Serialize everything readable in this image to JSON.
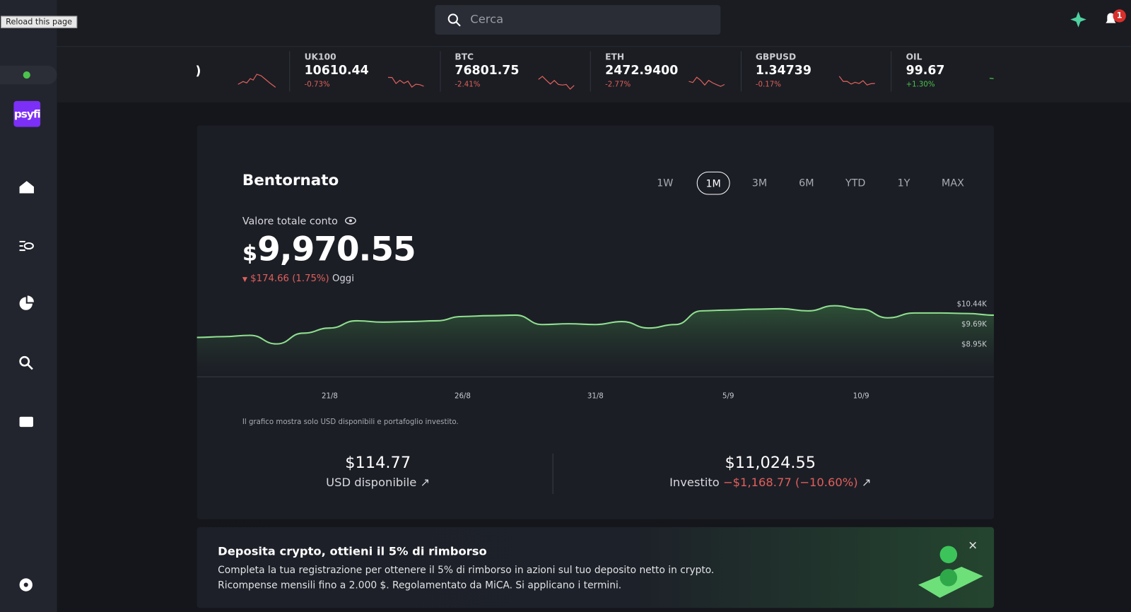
{
  "browser_tooltip": "Reload this page",
  "search": {
    "placeholder": "Cerca"
  },
  "notifications": {
    "badge": "1"
  },
  "sidebar": {
    "logo": "psyfi"
  },
  "ticker": [
    {
      "symbol": "UK100",
      "price": "10610.44",
      "change": "-0.73%",
      "color": "#e0605a"
    },
    {
      "symbol": "BTC",
      "price": "76801.75",
      "change": "-2.41%",
      "color": "#e0605a"
    },
    {
      "symbol": "ETH",
      "price": "2472.9400",
      "change": "-2.77%",
      "color": "#e0605a"
    },
    {
      "symbol": "GBPUSD",
      "price": "1.34739",
      "change": "-0.17%",
      "color": "#e0605a"
    },
    {
      "symbol": "OIL",
      "price": "99.67",
      "change": "+1.30%",
      "color": "#4cc34c"
    }
  ],
  "dashboard": {
    "title": "Bentornato",
    "ranges": [
      "1W",
      "1M",
      "3M",
      "6M",
      "YTD",
      "1Y",
      "MAX"
    ],
    "selected_range": "1M",
    "account_label": "Valore totale conto",
    "currency": "$",
    "total": "9,970.55",
    "change": "$174.66 (1.75%)",
    "period": "Oggi",
    "note": "Il grafico mostra solo USD disponibili e portafoglio investito.",
    "cash": {
      "amount": "$114.77",
      "label": "USD disponibile"
    },
    "invested": {
      "amount": "$11,024.55",
      "label": "Investito",
      "change": "−$1,168.77 (−10.60%)"
    }
  },
  "chart_data": {
    "type": "line",
    "categories": [
      null,
      null,
      null,
      null,
      null,
      "21/8",
      null,
      null,
      null,
      null,
      "26/8",
      null,
      null,
      null,
      null,
      "31/8",
      null,
      null,
      null,
      null,
      "5/9",
      null,
      null,
      null,
      null,
      "10/9",
      null,
      null,
      null,
      null,
      null
    ],
    "values": [
      9180,
      9210,
      9260,
      8940,
      9340,
      9530,
      9800,
      9750,
      9770,
      9800,
      9960,
      9990,
      10010,
      9660,
      9690,
      9660,
      9770,
      9530,
      9660,
      10170,
      10200,
      10230,
      10250,
      10170,
      10360,
      10230,
      9910,
      10090,
      10090,
      10070,
      10010
    ],
    "color": "#8fe08f",
    "ylim": [
      7730,
      10735
    ],
    "yticks": [
      {
        "value": 10440,
        "label": "$10.44K"
      },
      {
        "value": 9690,
        "label": "$9.69K"
      },
      {
        "value": 8950,
        "label": "$8.95K"
      }
    ]
  },
  "banner": {
    "title": "Deposita crypto, ottieni il 5% di rimborso",
    "lines": [
      "Completa la tua registrazione per ottenere il 5% di rimborso in azioni sul tuo deposito netto in crypto.",
      "Ricompense mensili fino a 2.000 $. Regolamentato da MiCA. Si applicano i termini."
    ]
  }
}
